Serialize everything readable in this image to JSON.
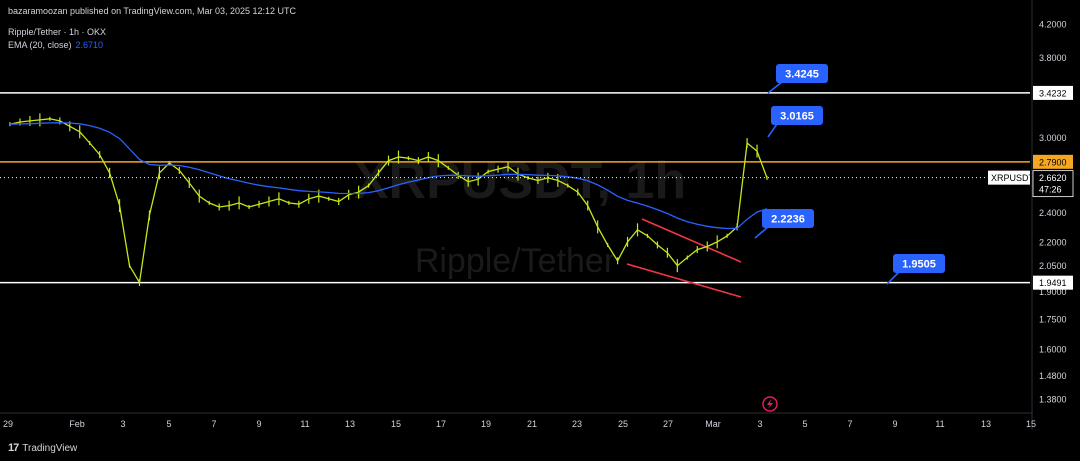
{
  "publisher_line": "bazaramoozan published on TradingView.com, Mar 03, 2025 12:12 UTC",
  "legend": {
    "symbol_line": "Ripple/Tether · 1h · OKX",
    "ema_label": "EMA (20, close)",
    "ema_value": "2.6710"
  },
  "watermark": {
    "symbol": "XRPUSDT, 1h",
    "name": "Ripple/Tether"
  },
  "footer_brand": "TradingView",
  "colors": {
    "background": "#000000",
    "candle": "#c8e619",
    "ema": "#2962ff",
    "horizontal_orange": "#f5a623",
    "horizontal_white": "#ffffff",
    "trend_red": "#f23645",
    "callout": "#2962ff"
  },
  "chart_data": {
    "type": "line",
    "symbol": "XRPUSDT",
    "y_scale": "log",
    "ylim": [
      1.3,
      4.3
    ],
    "y_ticks": [
      "4.2000",
      "3.8000",
      "3.0000",
      "2.4000",
      "2.2000",
      "2.0500",
      "1.9000",
      "1.7500",
      "1.6000",
      "1.4800",
      "1.3800"
    ],
    "x_ticks": [
      "29",
      "Feb",
      "3",
      "5",
      "7",
      "9",
      "11",
      "13",
      "15",
      "17",
      "19",
      "21",
      "23",
      "25",
      "27",
      "Mar",
      "3",
      "5",
      "7",
      "9",
      "11",
      "13",
      "15"
    ],
    "series": [
      {
        "values": [
          3.12,
          3.14,
          3.15,
          3.16,
          3.17,
          3.15,
          3.1,
          3.05,
          2.95,
          2.85,
          2.7,
          2.45,
          2.05,
          1.95,
          2.38,
          2.7,
          2.78,
          2.72,
          2.62,
          2.52,
          2.47,
          2.44,
          2.45,
          2.47,
          2.44,
          2.46,
          2.48,
          2.5,
          2.47,
          2.46,
          2.5,
          2.52,
          2.5,
          2.48,
          2.53,
          2.55,
          2.6,
          2.7,
          2.8,
          2.83,
          2.82,
          2.8,
          2.83,
          2.8,
          2.74,
          2.68,
          2.63,
          2.65,
          2.71,
          2.73,
          2.75,
          2.69,
          2.66,
          2.64,
          2.66,
          2.64,
          2.6,
          2.55,
          2.45,
          2.3,
          2.18,
          2.08,
          2.2,
          2.28,
          2.24,
          2.18,
          2.13,
          2.05,
          2.1,
          2.15,
          2.17,
          2.2,
          2.24,
          2.3,
          2.95,
          2.88,
          2.66
        ]
      }
    ],
    "ema_current": "2.6710",
    "horizontal_levels": [
      {
        "label": "3.4232",
        "value": 3.4232
      },
      {
        "label": "2.7900",
        "value": 2.79
      },
      {
        "label": "1.9491",
        "value": 1.9491
      }
    ],
    "last_price": {
      "symbol": "XRPUSDT",
      "value": "2.6620",
      "countdown": "47:26"
    },
    "callouts": [
      "3.4245",
      "3.0165",
      "2.2236",
      "1.9505"
    ],
    "trendlines": "red descending channel, 25 Feb – Mar"
  }
}
